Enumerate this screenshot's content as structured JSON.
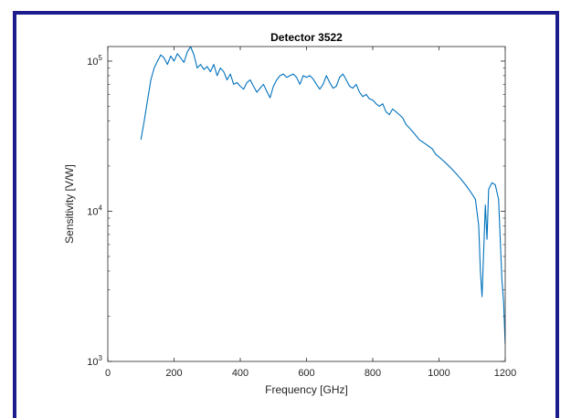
{
  "colors": {
    "frame_border": "#1c1c8c",
    "axes": "#262626",
    "series": "#0072BD",
    "background": "#ffffff"
  },
  "chart_data": {
    "type": "line",
    "title": "Detector 3522",
    "xlabel": "Frequency [GHz]",
    "ylabel": "Sensitivity [V/W]",
    "xlim": [
      0,
      1200
    ],
    "ylim": [
      1000,
      125000
    ],
    "yscale": "log",
    "grid": false,
    "legend": "none",
    "x_ticks": [
      0,
      200,
      400,
      600,
      800,
      1000,
      1200
    ],
    "x_tick_labels": [
      "0",
      "200",
      "400",
      "600",
      "800",
      "1000",
      "1200"
    ],
    "y_ticks": [
      1000,
      10000,
      100000
    ],
    "y_tick_labels": [
      {
        "base": "10",
        "exp": "3"
      },
      {
        "base": "10",
        "exp": "4"
      },
      {
        "base": "10",
        "exp": "5"
      }
    ],
    "series": [
      {
        "x": [
          100,
          110,
          120,
          130,
          140,
          150,
          160,
          170,
          180,
          190,
          200,
          210,
          220,
          230,
          240,
          250,
          260,
          270,
          280,
          290,
          300,
          310,
          320,
          330,
          340,
          350,
          360,
          370,
          380,
          390,
          400,
          410,
          420,
          430,
          440,
          450,
          460,
          470,
          480,
          490,
          500,
          510,
          520,
          530,
          540,
          550,
          560,
          570,
          580,
          590,
          600,
          610,
          620,
          630,
          640,
          650,
          660,
          670,
          680,
          690,
          700,
          710,
          720,
          730,
          740,
          750,
          760,
          770,
          780,
          790,
          800,
          810,
          820,
          830,
          840,
          850,
          860,
          870,
          880,
          890,
          900,
          910,
          920,
          930,
          940,
          950,
          960,
          970,
          980,
          990,
          1000,
          1010,
          1020,
          1030,
          1040,
          1050,
          1060,
          1070,
          1080,
          1090,
          1100,
          1110,
          1120,
          1125,
          1130,
          1140,
          1145,
          1150,
          1160,
          1170,
          1180,
          1190,
          1195,
          1200
        ],
        "y": [
          30000,
          40000,
          55000,
          75000,
          90000,
          100000,
          110000,
          105000,
          95000,
          108000,
          100000,
          112000,
          105000,
          98000,
          115000,
          125000,
          110000,
          90000,
          95000,
          88000,
          92000,
          85000,
          95000,
          80000,
          90000,
          85000,
          75000,
          82000,
          70000,
          72000,
          68000,
          65000,
          72000,
          75000,
          68000,
          62000,
          66000,
          70000,
          63000,
          57000,
          68000,
          75000,
          80000,
          82000,
          78000,
          80000,
          82000,
          78000,
          70000,
          80000,
          78000,
          80000,
          76000,
          70000,
          65000,
          70000,
          80000,
          72000,
          66000,
          68000,
          78000,
          82000,
          75000,
          68000,
          66000,
          70000,
          62000,
          58000,
          60000,
          56000,
          55000,
          52000,
          50000,
          52000,
          46000,
          44000,
          48000,
          46000,
          44000,
          42000,
          38000,
          36000,
          34000,
          32000,
          30000,
          29000,
          28000,
          27000,
          26000,
          24000,
          23000,
          22000,
          21000,
          20000,
          19000,
          18000,
          17000,
          16000,
          15000,
          14000,
          13000,
          12000,
          8000,
          4000,
          2700,
          11000,
          6500,
          14000,
          15500,
          15000,
          12000,
          3500,
          2500,
          1300
        ]
      }
    ]
  }
}
